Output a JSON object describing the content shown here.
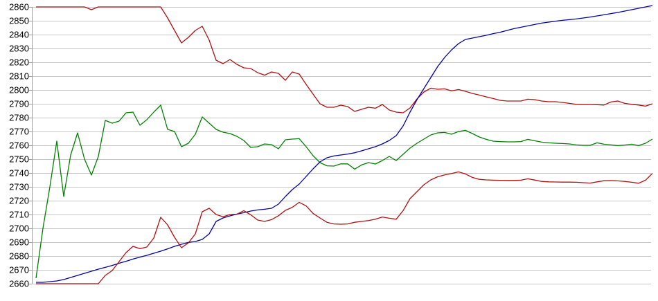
{
  "chart_data": {
    "type": "line",
    "title": "",
    "xlabel": "",
    "ylabel": "",
    "grid": true,
    "legend": "none",
    "x_tick_labels": [],
    "y_axis": {
      "min": 2660,
      "max": 2860,
      "step": 10,
      "tick_labels": [
        "2860",
        "2850",
        "2840",
        "2830",
        "2820",
        "2810",
        "2800",
        "2790",
        "2780",
        "2770",
        "2760",
        "2750",
        "2740",
        "2730",
        "2720",
        "2710",
        "2700",
        "2690",
        "2680",
        "2670",
        "2660"
      ]
    },
    "colors": {
      "red_series": "#b01010",
      "green_series": "#008000",
      "blue_series": "#0000a8",
      "gridline": "#c6c6c6",
      "axis": "#a0a0a0",
      "label": "#000000",
      "background": "#ffffff"
    },
    "series": [
      {
        "name": "upper-red",
        "color_key": "red_series",
        "values": [
          2860,
          2860,
          2860,
          2860,
          2860,
          2860,
          2860,
          2860,
          2858,
          2860,
          2860,
          2860,
          2860,
          2860,
          2860,
          2860,
          2860,
          2860,
          2860,
          2852,
          2843,
          2834,
          2838,
          2843,
          2846,
          2836,
          2821.5,
          2819,
          2822,
          2818.5,
          2816,
          2815.5,
          2812.5,
          2810.7,
          2813,
          2812,
          2807,
          2813,
          2811.5,
          2804,
          2797,
          2790,
          2787.5,
          2787.5,
          2789,
          2788,
          2784.5,
          2786,
          2787.5,
          2786.8,
          2789.5,
          2785.5,
          2784,
          2783.5,
          2787,
          2793.5,
          2798.5,
          2801.3,
          2800.5,
          2800.8,
          2799.3,
          2800.3,
          2799,
          2797.5,
          2796.3,
          2795,
          2793.8,
          2792.5,
          2792,
          2792,
          2792,
          2793.3,
          2793,
          2792,
          2791.5,
          2791.5,
          2791,
          2790.3,
          2789.6,
          2789.5,
          2789.5,
          2789.3,
          2789.1,
          2791.3,
          2792,
          2790.3,
          2789.6,
          2789.1,
          2788.3,
          2790
        ]
      },
      {
        "name": "green",
        "color_key": "green_series",
        "values": [
          2664,
          2700,
          2730,
          2763,
          2723,
          2753,
          2769,
          2750,
          2738.5,
          2752,
          2778,
          2776,
          2777.5,
          2783.5,
          2784,
          2774.5,
          2778.5,
          2784,
          2789,
          2771.5,
          2770,
          2759,
          2761.5,
          2768,
          2780.5,
          2776,
          2771.5,
          2769.5,
          2768.5,
          2766.5,
          2763.5,
          2758.5,
          2759,
          2761,
          2760.5,
          2757.5,
          2764,
          2764.5,
          2764.8,
          2759,
          2752.5,
          2747.5,
          2745.2,
          2745,
          2746.6,
          2746.6,
          2742.8,
          2745.8,
          2747.5,
          2746.5,
          2749,
          2752,
          2749,
          2753.5,
          2758,
          2761.5,
          2764.5,
          2767.5,
          2769,
          2769.3,
          2768,
          2770,
          2770.8,
          2768.5,
          2766,
          2764.3,
          2763,
          2762.7,
          2762.5,
          2762.5,
          2762.7,
          2764.3,
          2763.3,
          2762.3,
          2761.8,
          2761.5,
          2761.3,
          2761,
          2760.3,
          2760,
          2760,
          2761.8,
          2760.8,
          2760.3,
          2759.8,
          2760.2,
          2760.8,
          2759.8,
          2761.5,
          2764.5
        ]
      },
      {
        "name": "blue",
        "color_key": "blue_series",
        "values": [
          2661,
          2661,
          2661.5,
          2662,
          2663,
          2664.5,
          2666,
          2667.5,
          2669,
          2670.5,
          2671.8,
          2673.2,
          2674.8,
          2676.2,
          2677.8,
          2679.2,
          2680.5,
          2682,
          2683.5,
          2685.2,
          2687,
          2688.5,
          2689.8,
          2690.5,
          2692,
          2696,
          2705,
          2707.5,
          2709,
          2710.3,
          2711.3,
          2712.5,
          2713.3,
          2713.8,
          2714.5,
          2717.5,
          2723,
          2728,
          2732,
          2737.5,
          2743,
          2748,
          2751,
          2752.3,
          2753,
          2753.7,
          2754.6,
          2756,
          2757.5,
          2759,
          2761,
          2763.5,
          2767,
          2774,
          2784,
          2793,
          2801,
          2809,
          2817,
          2823.5,
          2829,
          2833.5,
          2836.5,
          2837.5,
          2838.5,
          2839.5,
          2840.7,
          2841.7,
          2843,
          2844.3,
          2845.3,
          2846.3,
          2847.3,
          2848.3,
          2849,
          2849.7,
          2850.3,
          2850.8,
          2851.3,
          2852,
          2852.7,
          2853.5,
          2854.3,
          2855.2,
          2856,
          2857,
          2858,
          2859,
          2860,
          2861
        ]
      },
      {
        "name": "lower-red",
        "color_key": "red_series",
        "values": [
          2660,
          2660,
          2660,
          2660,
          2660,
          2660,
          2660,
          2660,
          2660,
          2660,
          2666,
          2669.5,
          2676,
          2682.5,
          2687,
          2685.3,
          2686.5,
          2693,
          2708,
          2702.5,
          2693.5,
          2686,
          2689.5,
          2696,
          2712,
          2714.5,
          2710,
          2708.4,
          2710,
          2710.2,
          2712.8,
          2709.8,
          2706,
          2705,
          2706.3,
          2709.1,
          2713,
          2715.2,
          2718.8,
          2716.2,
          2710.8,
          2707.5,
          2704.4,
          2703.2,
          2703,
          2703.2,
          2704.4,
          2705,
          2705.6,
          2706.6,
          2708.2,
          2707.3,
          2706.6,
          2712.8,
          2721.5,
          2726.5,
          2731.5,
          2735,
          2737.3,
          2738.6,
          2739.6,
          2740.8,
          2739.3,
          2736.8,
          2735.4,
          2735,
          2734.8,
          2734.7,
          2734.6,
          2734.6,
          2734.8,
          2735.8,
          2734.9,
          2733.9,
          2733.6,
          2733.5,
          2733.4,
          2733.4,
          2733.3,
          2733,
          2732.7,
          2733.6,
          2734.4,
          2734.5,
          2734.3,
          2733.9,
          2733.3,
          2732.6,
          2734.8,
          2739.8
        ]
      }
    ]
  }
}
